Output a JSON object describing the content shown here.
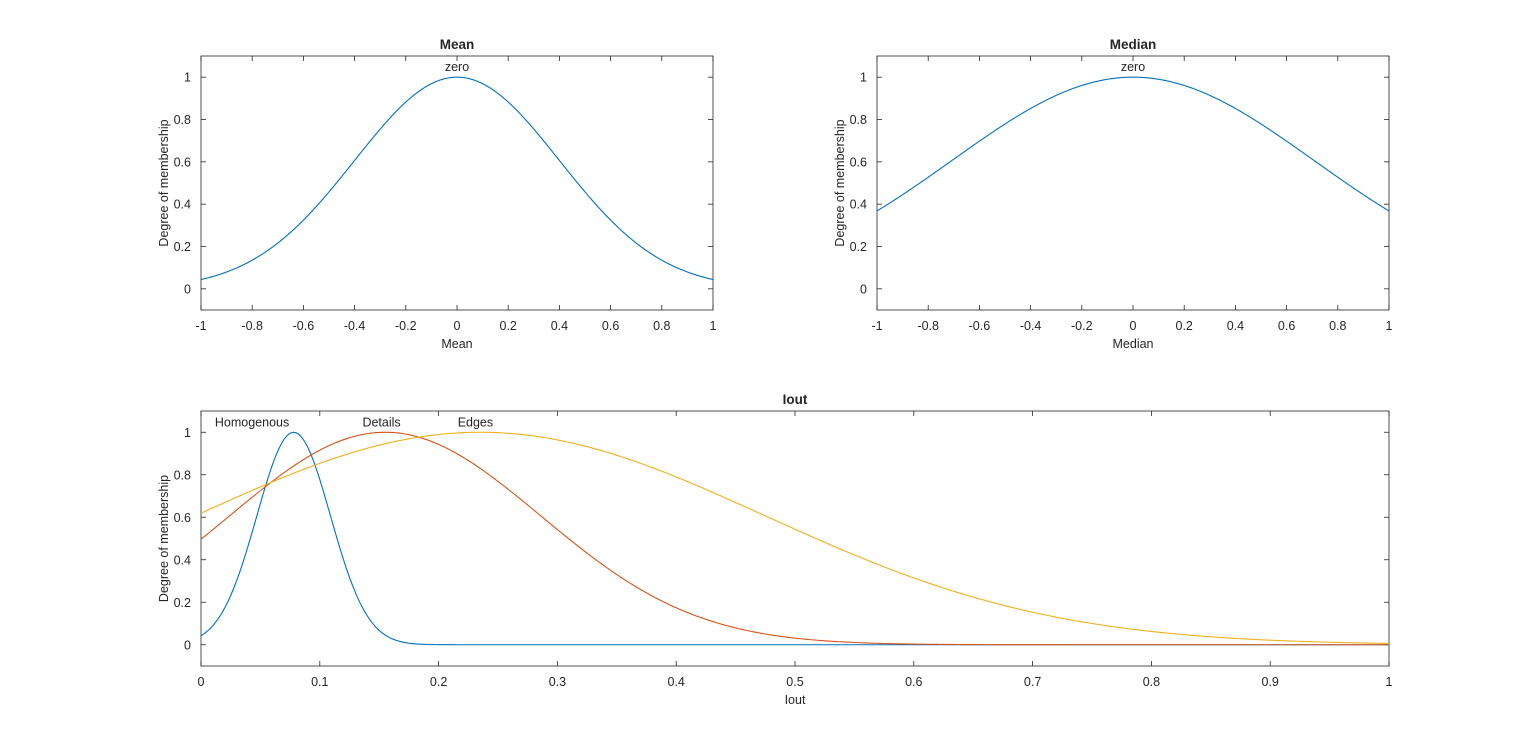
{
  "chart_data": [
    {
      "type": "line",
      "title": "Mean",
      "xlabel": "Mean",
      "ylabel": "Degree of membership",
      "xlim": [
        -1,
        1
      ],
      "ylim": [
        -0.1,
        1.1
      ],
      "xticks": [
        -1,
        -0.8,
        -0.6,
        -0.4,
        -0.2,
        0,
        0.2,
        0.4,
        0.6,
        0.8,
        1
      ],
      "xticklabels": [
        "-1",
        "-0.8",
        "-0.6",
        "-0.4",
        "-0.2",
        "0",
        "0.2",
        "0.4",
        "0.6",
        "0.8",
        "1"
      ],
      "yticks": [
        0,
        0.2,
        0.4,
        0.6,
        0.8,
        1
      ],
      "yticklabels": [
        "0",
        "0.2",
        "0.4",
        "0.6",
        "0.8",
        "1"
      ],
      "grid": false,
      "series": [
        {
          "name": "zero",
          "shape": "gaussian",
          "sigma": 0.4,
          "center": 0,
          "color": "#0072BD",
          "label_x": 0
        }
      ]
    },
    {
      "type": "line",
      "title": "Median",
      "xlabel": "Median",
      "ylabel": "Degree of membership",
      "xlim": [
        -1,
        1
      ],
      "ylim": [
        -0.1,
        1.1
      ],
      "xticks": [
        -1,
        -0.8,
        -0.6,
        -0.4,
        -0.2,
        0,
        0.2,
        0.4,
        0.6,
        0.8,
        1
      ],
      "xticklabels": [
        "-1",
        "-0.8",
        "-0.6",
        "-0.4",
        "-0.2",
        "0",
        "0.2",
        "0.4",
        "0.6",
        "0.8",
        "1"
      ],
      "yticks": [
        0,
        0.2,
        0.4,
        0.6,
        0.8,
        1
      ],
      "yticklabels": [
        "0",
        "0.2",
        "0.4",
        "0.6",
        "0.8",
        "1"
      ],
      "grid": false,
      "series": [
        {
          "name": "zero",
          "shape": "gaussian",
          "sigma": 0.707,
          "center": 0,
          "color": "#0072BD",
          "label_x": 0
        }
      ]
    },
    {
      "type": "line",
      "title": "Iout",
      "xlabel": "Iout",
      "ylabel": "Degree of membership",
      "xlim": [
        0,
        1
      ],
      "ylim": [
        -0.1,
        1.1
      ],
      "xticks": [
        0,
        0.1,
        0.2,
        0.3,
        0.4,
        0.5,
        0.6,
        0.7,
        0.8,
        0.9,
        1
      ],
      "xticklabels": [
        "0",
        "0.1",
        "0.2",
        "0.3",
        "0.4",
        "0.5",
        "0.6",
        "0.7",
        "0.8",
        "0.9",
        "1"
      ],
      "yticks": [
        0,
        0.2,
        0.4,
        0.6,
        0.8,
        1
      ],
      "yticklabels": [
        "0",
        "0.2",
        "0.4",
        "0.6",
        "0.8",
        "1"
      ],
      "grid": false,
      "series": [
        {
          "name": "Homogenous",
          "shape": "gaussian",
          "sigma": 0.031,
          "center": 0.078,
          "color": "#0072BD",
          "label_x": 0.043
        },
        {
          "name": "Details",
          "shape": "gaussian",
          "sigma": 0.131,
          "center": 0.155,
          "color": "#D95319",
          "label_x": 0.152
        },
        {
          "name": "Edges",
          "shape": "gaussian",
          "sigma": 0.24,
          "center": 0.235,
          "color": "#EDB120",
          "label_x": 0.231
        }
      ]
    }
  ]
}
